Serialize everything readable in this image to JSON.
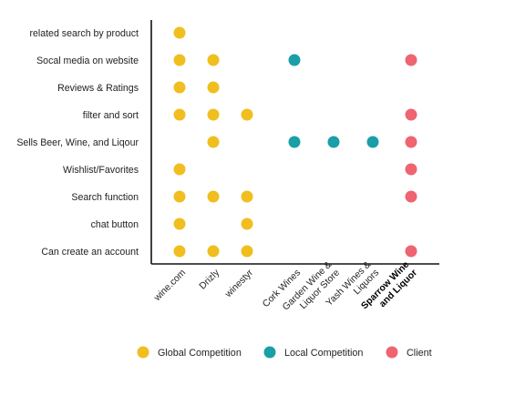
{
  "chart_data": {
    "type": "scatter",
    "title": "",
    "xlabel": "",
    "ylabel": "",
    "grid": false,
    "legend_position": "bottom",
    "x_categories": [
      {
        "label": [
          "wine.com"
        ],
        "bold": false
      },
      {
        "label": [
          "Drizly"
        ],
        "bold": false
      },
      {
        "label": [
          "winestyr"
        ],
        "bold": false
      },
      {
        "label": [
          "Cork Wines"
        ],
        "bold": false
      },
      {
        "label": [
          "Garden Wine &",
          "Liquor Store"
        ],
        "bold": false
      },
      {
        "label": [
          "Yash Wines &",
          "Liquors"
        ],
        "bold": false
      },
      {
        "label": [
          "Sparrow Wine",
          "and Liquor"
        ],
        "bold": true
      }
    ],
    "y_categories": [
      "related search by product",
      "Socal media on website",
      "Reviews & Ratings",
      "filter and sort",
      "Sells Beer, Wine, and Liqour",
      "Wishlist/Favorites",
      "Search function",
      "chat button",
      "Can create an account"
    ],
    "series": [
      {
        "name": "Global Competition",
        "color": "#F0BE1E"
      },
      {
        "name": "Local Competition",
        "color": "#1A9FA8"
      },
      {
        "name": "Client",
        "color": "#EE6470"
      }
    ],
    "points": [
      {
        "x": 0,
        "y": 0,
        "series": 0
      },
      {
        "x": 0,
        "y": 1,
        "series": 0
      },
      {
        "x": 1,
        "y": 1,
        "series": 0
      },
      {
        "x": 3,
        "y": 1,
        "series": 1
      },
      {
        "x": 6,
        "y": 1,
        "series": 2
      },
      {
        "x": 0,
        "y": 2,
        "series": 0
      },
      {
        "x": 1,
        "y": 2,
        "series": 0
      },
      {
        "x": 0,
        "y": 3,
        "series": 0
      },
      {
        "x": 1,
        "y": 3,
        "series": 0
      },
      {
        "x": 2,
        "y": 3,
        "series": 0
      },
      {
        "x": 6,
        "y": 3,
        "series": 2
      },
      {
        "x": 1,
        "y": 4,
        "series": 0
      },
      {
        "x": 3,
        "y": 4,
        "series": 1
      },
      {
        "x": 4,
        "y": 4,
        "series": 1
      },
      {
        "x": 5,
        "y": 4,
        "series": 1
      },
      {
        "x": 6,
        "y": 4,
        "series": 2
      },
      {
        "x": 0,
        "y": 5,
        "series": 0
      },
      {
        "x": 6,
        "y": 5,
        "series": 2
      },
      {
        "x": 0,
        "y": 6,
        "series": 0
      },
      {
        "x": 1,
        "y": 6,
        "series": 0
      },
      {
        "x": 2,
        "y": 6,
        "series": 0
      },
      {
        "x": 6,
        "y": 6,
        "series": 2
      },
      {
        "x": 0,
        "y": 7,
        "series": 0
      },
      {
        "x": 2,
        "y": 7,
        "series": 0
      },
      {
        "x": 0,
        "y": 8,
        "series": 0
      },
      {
        "x": 1,
        "y": 8,
        "series": 0
      },
      {
        "x": 2,
        "y": 8,
        "series": 0
      },
      {
        "x": 6,
        "y": 8,
        "series": 2
      }
    ]
  }
}
